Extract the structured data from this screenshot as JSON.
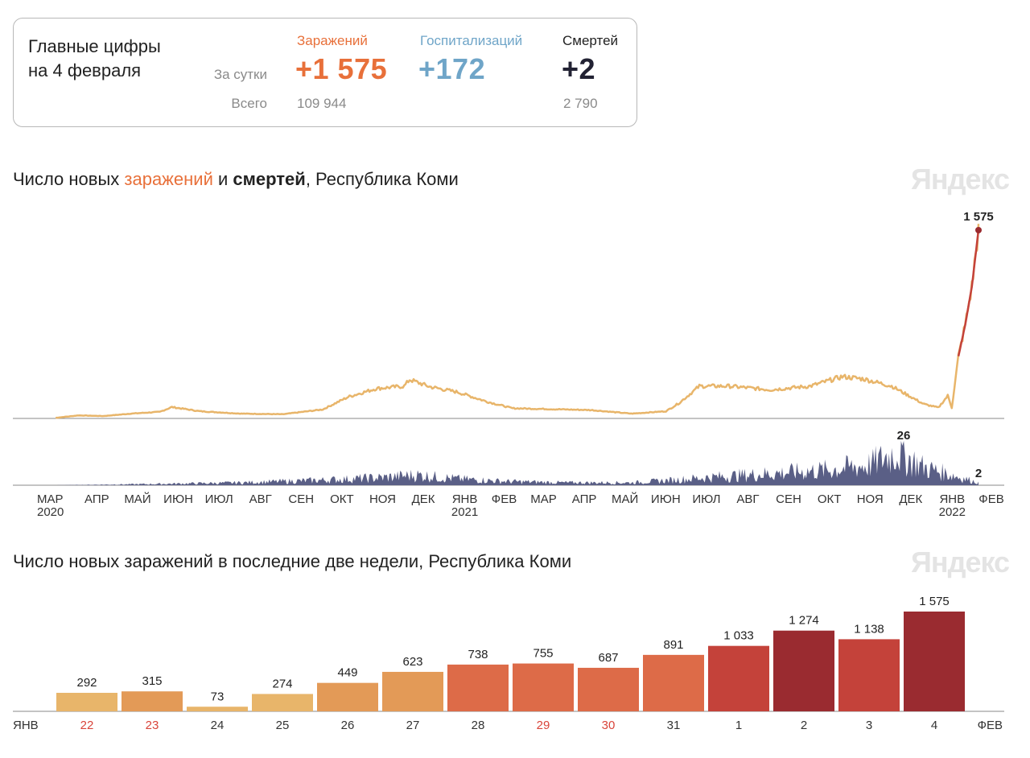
{
  "summary": {
    "title_line1": "Главные цифры",
    "title_line2": "на 4 февраля",
    "row_day": "За сутки",
    "row_total": "Всего",
    "infections": {
      "label": "Заражений",
      "day": "+1 575",
      "total": "109 944",
      "color": "#e8703a"
    },
    "hospitalizations": {
      "label": "Госпитализаций",
      "day": "+172",
      "total": "",
      "color": "#6fa5c8"
    },
    "deaths": {
      "label": "Смертей",
      "day": "+2",
      "total": "2 790",
      "color": "#222233"
    }
  },
  "watermark": "Яндекс",
  "chart1": {
    "title_a": "Число новых ",
    "title_infections": "заражений",
    "title_and": " и ",
    "title_deaths": "смертей",
    "title_rest": ", Республика Коми",
    "peak_infections_label": "1 575",
    "peak_deaths_label": "26",
    "last_deaths_label": "2"
  },
  "chart2": {
    "title": "Число новых заражений в последние две недели, Республика Коми",
    "left_label": "ЯНВ",
    "right_label": "ФЕВ"
  },
  "chart_data": [
    {
      "type": "line",
      "title": "Число новых заражений и смертей, Республика Коми",
      "x_ticks": [
        "МАР",
        "АПР",
        "МАЙ",
        "ИЮН",
        "ИЮЛ",
        "АВГ",
        "СЕН",
        "ОКТ",
        "НОЯ",
        "ДЕК",
        "ЯНВ",
        "ФЕВ",
        "МАР",
        "АПР",
        "МАЙ",
        "ИЮН",
        "ИЮЛ",
        "АВГ",
        "СЕН",
        "ОКТ",
        "НОЯ",
        "ДЕК",
        "ЯНВ",
        "ФЕВ"
      ],
      "year_labels": [
        {
          "after": "МАР",
          "year": "2020"
        },
        {
          "after": "ЯНВ",
          "year": "2021"
        },
        {
          "after": "ЯНВ",
          "year": "2022"
        }
      ],
      "series": [
        {
          "name": "заражений",
          "color": "#e8b56a",
          "x": [
            "2020-03-15",
            "2020-04-01",
            "2020-04-20",
            "2020-05-10",
            "2020-06-01",
            "2020-06-10",
            "2020-07-01",
            "2020-08-01",
            "2020-09-01",
            "2020-10-01",
            "2020-10-20",
            "2020-11-10",
            "2020-12-01",
            "2020-12-05",
            "2020-12-20",
            "2021-01-10",
            "2021-02-01",
            "2021-02-20",
            "2021-03-20",
            "2021-04-20",
            "2021-05-20",
            "2021-06-15",
            "2021-06-25",
            "2021-07-10",
            "2021-08-01",
            "2021-09-01",
            "2021-10-01",
            "2021-10-25",
            "2021-11-10",
            "2021-12-01",
            "2021-12-25",
            "2022-01-05",
            "2022-01-12",
            "2022-01-15",
            "2022-01-20",
            "2022-01-25",
            "2022-01-30",
            "2022-02-04"
          ],
          "values": [
            5,
            25,
            20,
            40,
            55,
            95,
            60,
            40,
            35,
            75,
            180,
            250,
            270,
            325,
            265,
            220,
            140,
            85,
            78,
            70,
            40,
            60,
            130,
            270,
            270,
            240,
            270,
            350,
            330,
            270,
            120,
            90,
            190,
            90,
            520,
            780,
            1100,
            1575
          ]
        },
        {
          "name": "смертей",
          "color": "#5a5f86",
          "x": [
            "2020-03-15",
            "2020-06-01",
            "2020-08-01",
            "2020-10-01",
            "2020-11-15",
            "2020-12-10",
            "2021-01-10",
            "2021-02-15",
            "2021-04-01",
            "2021-05-20",
            "2021-06-20",
            "2021-07-15",
            "2021-08-15",
            "2021-09-15",
            "2021-10-15",
            "2021-11-15",
            "2021-12-05",
            "2021-12-25",
            "2022-01-15",
            "2022-02-04"
          ],
          "values": [
            0,
            1,
            2,
            4,
            6,
            8,
            5,
            3,
            2,
            2,
            4,
            6,
            8,
            10,
            12,
            16,
            26,
            14,
            8,
            2
          ]
        }
      ]
    },
    {
      "type": "bar",
      "title": "Число новых заражений в последние две недели, Республика Коми",
      "categories": [
        "22",
        "23",
        "24",
        "25",
        "26",
        "27",
        "28",
        "29",
        "30",
        "31",
        "1",
        "2",
        "3",
        "4"
      ],
      "values": [
        292,
        315,
        73,
        274,
        449,
        623,
        738,
        755,
        687,
        891,
        1033,
        1274,
        1138,
        1575
      ],
      "value_labels": [
        "292",
        "315",
        "73",
        "274",
        "449",
        "623",
        "738",
        "755",
        "687",
        "891",
        "1 033",
        "1 274",
        "1 138",
        "1 575"
      ],
      "category_colors": [
        "#d9443a",
        "#d9443a",
        "#333333",
        "#333333",
        "#333333",
        "#333333",
        "#333333",
        "#d9443a",
        "#d9443a",
        "#333333",
        "#333333",
        "#333333",
        "#333333",
        "#333333"
      ],
      "bar_colors": [
        "#e8b56a",
        "#e39a57",
        "#e8b56a",
        "#e8b56a",
        "#e39a57",
        "#e39a57",
        "#dd6b48",
        "#dd6b48",
        "#dd6b48",
        "#dd6b48",
        "#c4423a",
        "#9a2b30",
        "#c4423a",
        "#9a2b30"
      ]
    }
  ]
}
